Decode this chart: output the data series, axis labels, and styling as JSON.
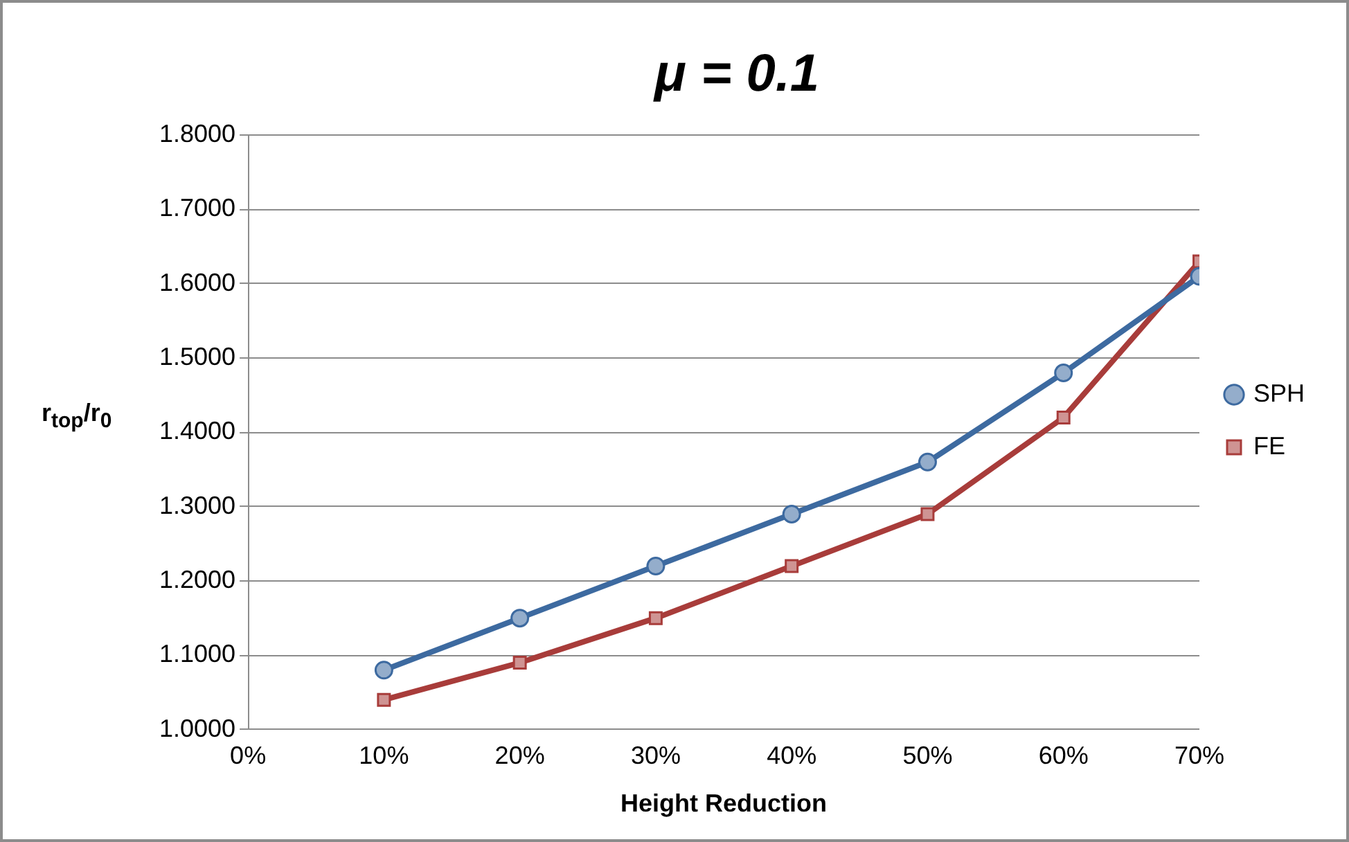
{
  "chart_data": {
    "type": "line",
    "title": "μ = 0.1",
    "xlabel": "Height Reduction",
    "ylabel": "r$_{top}$/r$_{0}$",
    "x": [
      0.1,
      0.2,
      0.3,
      0.4,
      0.5,
      0.6,
      0.7
    ],
    "xlim": [
      0,
      0.7
    ],
    "xticks": [
      {
        "value": 0,
        "label": "0%"
      },
      {
        "value": 0.1,
        "label": "10%"
      },
      {
        "value": 0.2,
        "label": "20%"
      },
      {
        "value": 0.3,
        "label": "30%"
      },
      {
        "value": 0.4,
        "label": "40%"
      },
      {
        "value": 0.5,
        "label": "50%"
      },
      {
        "value": 0.6,
        "label": "60%"
      },
      {
        "value": 0.7,
        "label": "70%"
      }
    ],
    "ylim": [
      1,
      1.8
    ],
    "yticks": [
      {
        "value": 1,
        "label": "1.0000"
      },
      {
        "value": 1.1,
        "label": "1.1000"
      },
      {
        "value": 1.2,
        "label": "1.2000"
      },
      {
        "value": 1.3,
        "label": "1.3000"
      },
      {
        "value": 1.4,
        "label": "1.4000"
      },
      {
        "value": 1.5,
        "label": "1.5000"
      },
      {
        "value": 1.6,
        "label": "1.6000"
      },
      {
        "value": 1.7,
        "label": "1.7000"
      },
      {
        "value": 1.8,
        "label": "1.8000"
      }
    ],
    "grid": "y",
    "legend": "right",
    "series": [
      {
        "name": "SPH",
        "color": "#3d6aa0",
        "marker": "circle",
        "values": [
          1.08,
          1.15,
          1.22,
          1.29,
          1.36,
          1.48,
          1.61
        ]
      },
      {
        "name": "FE",
        "color": "#a83c3a",
        "marker": "square",
        "values": [
          1.04,
          1.09,
          1.15,
          1.22,
          1.29,
          1.42,
          1.63
        ]
      }
    ]
  }
}
